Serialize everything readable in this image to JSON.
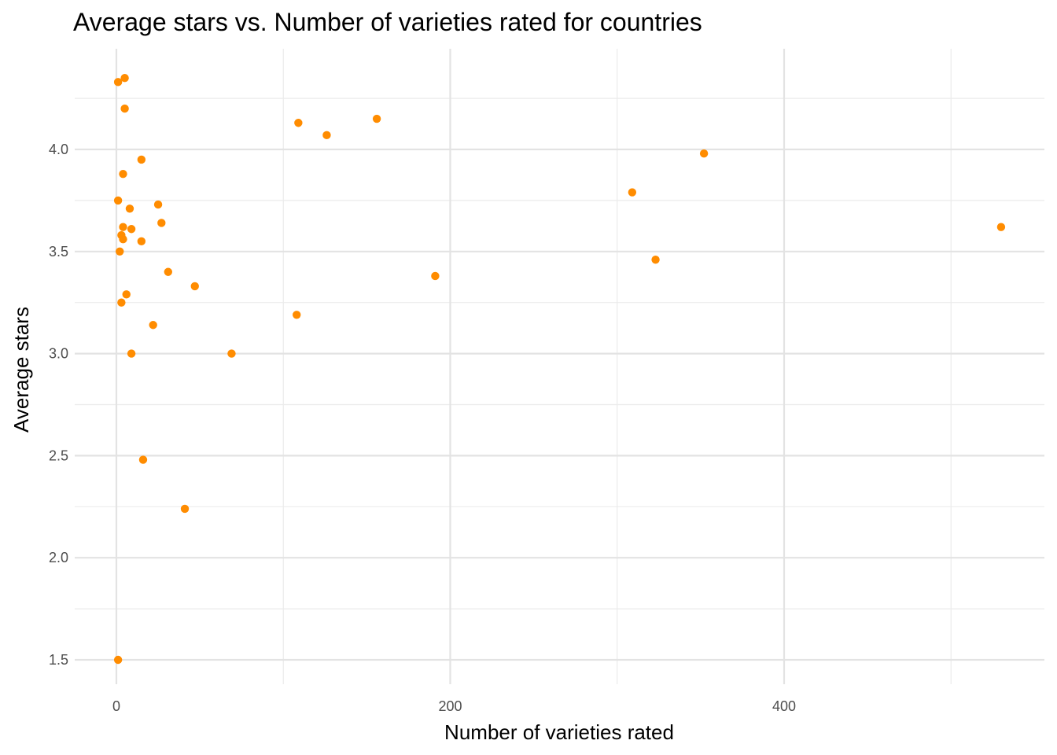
{
  "chart_data": {
    "type": "scatter",
    "title": "Average stars vs. Number of varieties rated for countries",
    "xlabel": "Number of varieties rated",
    "ylabel": "Average stars",
    "xlim": [
      -22,
      560
    ],
    "ylim": [
      1.37,
      4.45
    ],
    "xticks": [
      0,
      200,
      400
    ],
    "xminor": [
      100,
      300,
      500
    ],
    "yticks": [
      1.5,
      2.0,
      2.5,
      3.0,
      3.5,
      4.0
    ],
    "ytick_labels": [
      "1.5",
      "2.0",
      "2.5",
      "3.0",
      "3.5",
      "4.0"
    ],
    "yminor": [
      1.75,
      2.25,
      2.75,
      3.25,
      3.75,
      4.25
    ],
    "grid": true,
    "point_color": "#FF8C00",
    "points": [
      {
        "x": 1,
        "y": 4.33
      },
      {
        "x": 5,
        "y": 4.35
      },
      {
        "x": 5,
        "y": 4.2
      },
      {
        "x": 15,
        "y": 3.95
      },
      {
        "x": 4,
        "y": 3.88
      },
      {
        "x": 1,
        "y": 3.75
      },
      {
        "x": 8,
        "y": 3.71
      },
      {
        "x": 25,
        "y": 3.73
      },
      {
        "x": 27,
        "y": 3.64
      },
      {
        "x": 4,
        "y": 3.62
      },
      {
        "x": 9,
        "y": 3.61
      },
      {
        "x": 3,
        "y": 3.58
      },
      {
        "x": 4,
        "y": 3.56
      },
      {
        "x": 15,
        "y": 3.55
      },
      {
        "x": 2,
        "y": 3.5
      },
      {
        "x": 31,
        "y": 3.4
      },
      {
        "x": 47,
        "y": 3.33
      },
      {
        "x": 6,
        "y": 3.29
      },
      {
        "x": 3,
        "y": 3.25
      },
      {
        "x": 22,
        "y": 3.14
      },
      {
        "x": 9,
        "y": 3.0
      },
      {
        "x": 69,
        "y": 3.0
      },
      {
        "x": 16,
        "y": 2.48
      },
      {
        "x": 41,
        "y": 2.24
      },
      {
        "x": 1,
        "y": 1.5
      },
      {
        "x": 109,
        "y": 4.13
      },
      {
        "x": 126,
        "y": 4.07
      },
      {
        "x": 156,
        "y": 4.15
      },
      {
        "x": 108,
        "y": 3.19
      },
      {
        "x": 191,
        "y": 3.38
      },
      {
        "x": 309,
        "y": 3.79
      },
      {
        "x": 323,
        "y": 3.46
      },
      {
        "x": 352,
        "y": 3.98
      },
      {
        "x": 530,
        "y": 3.62
      }
    ]
  }
}
